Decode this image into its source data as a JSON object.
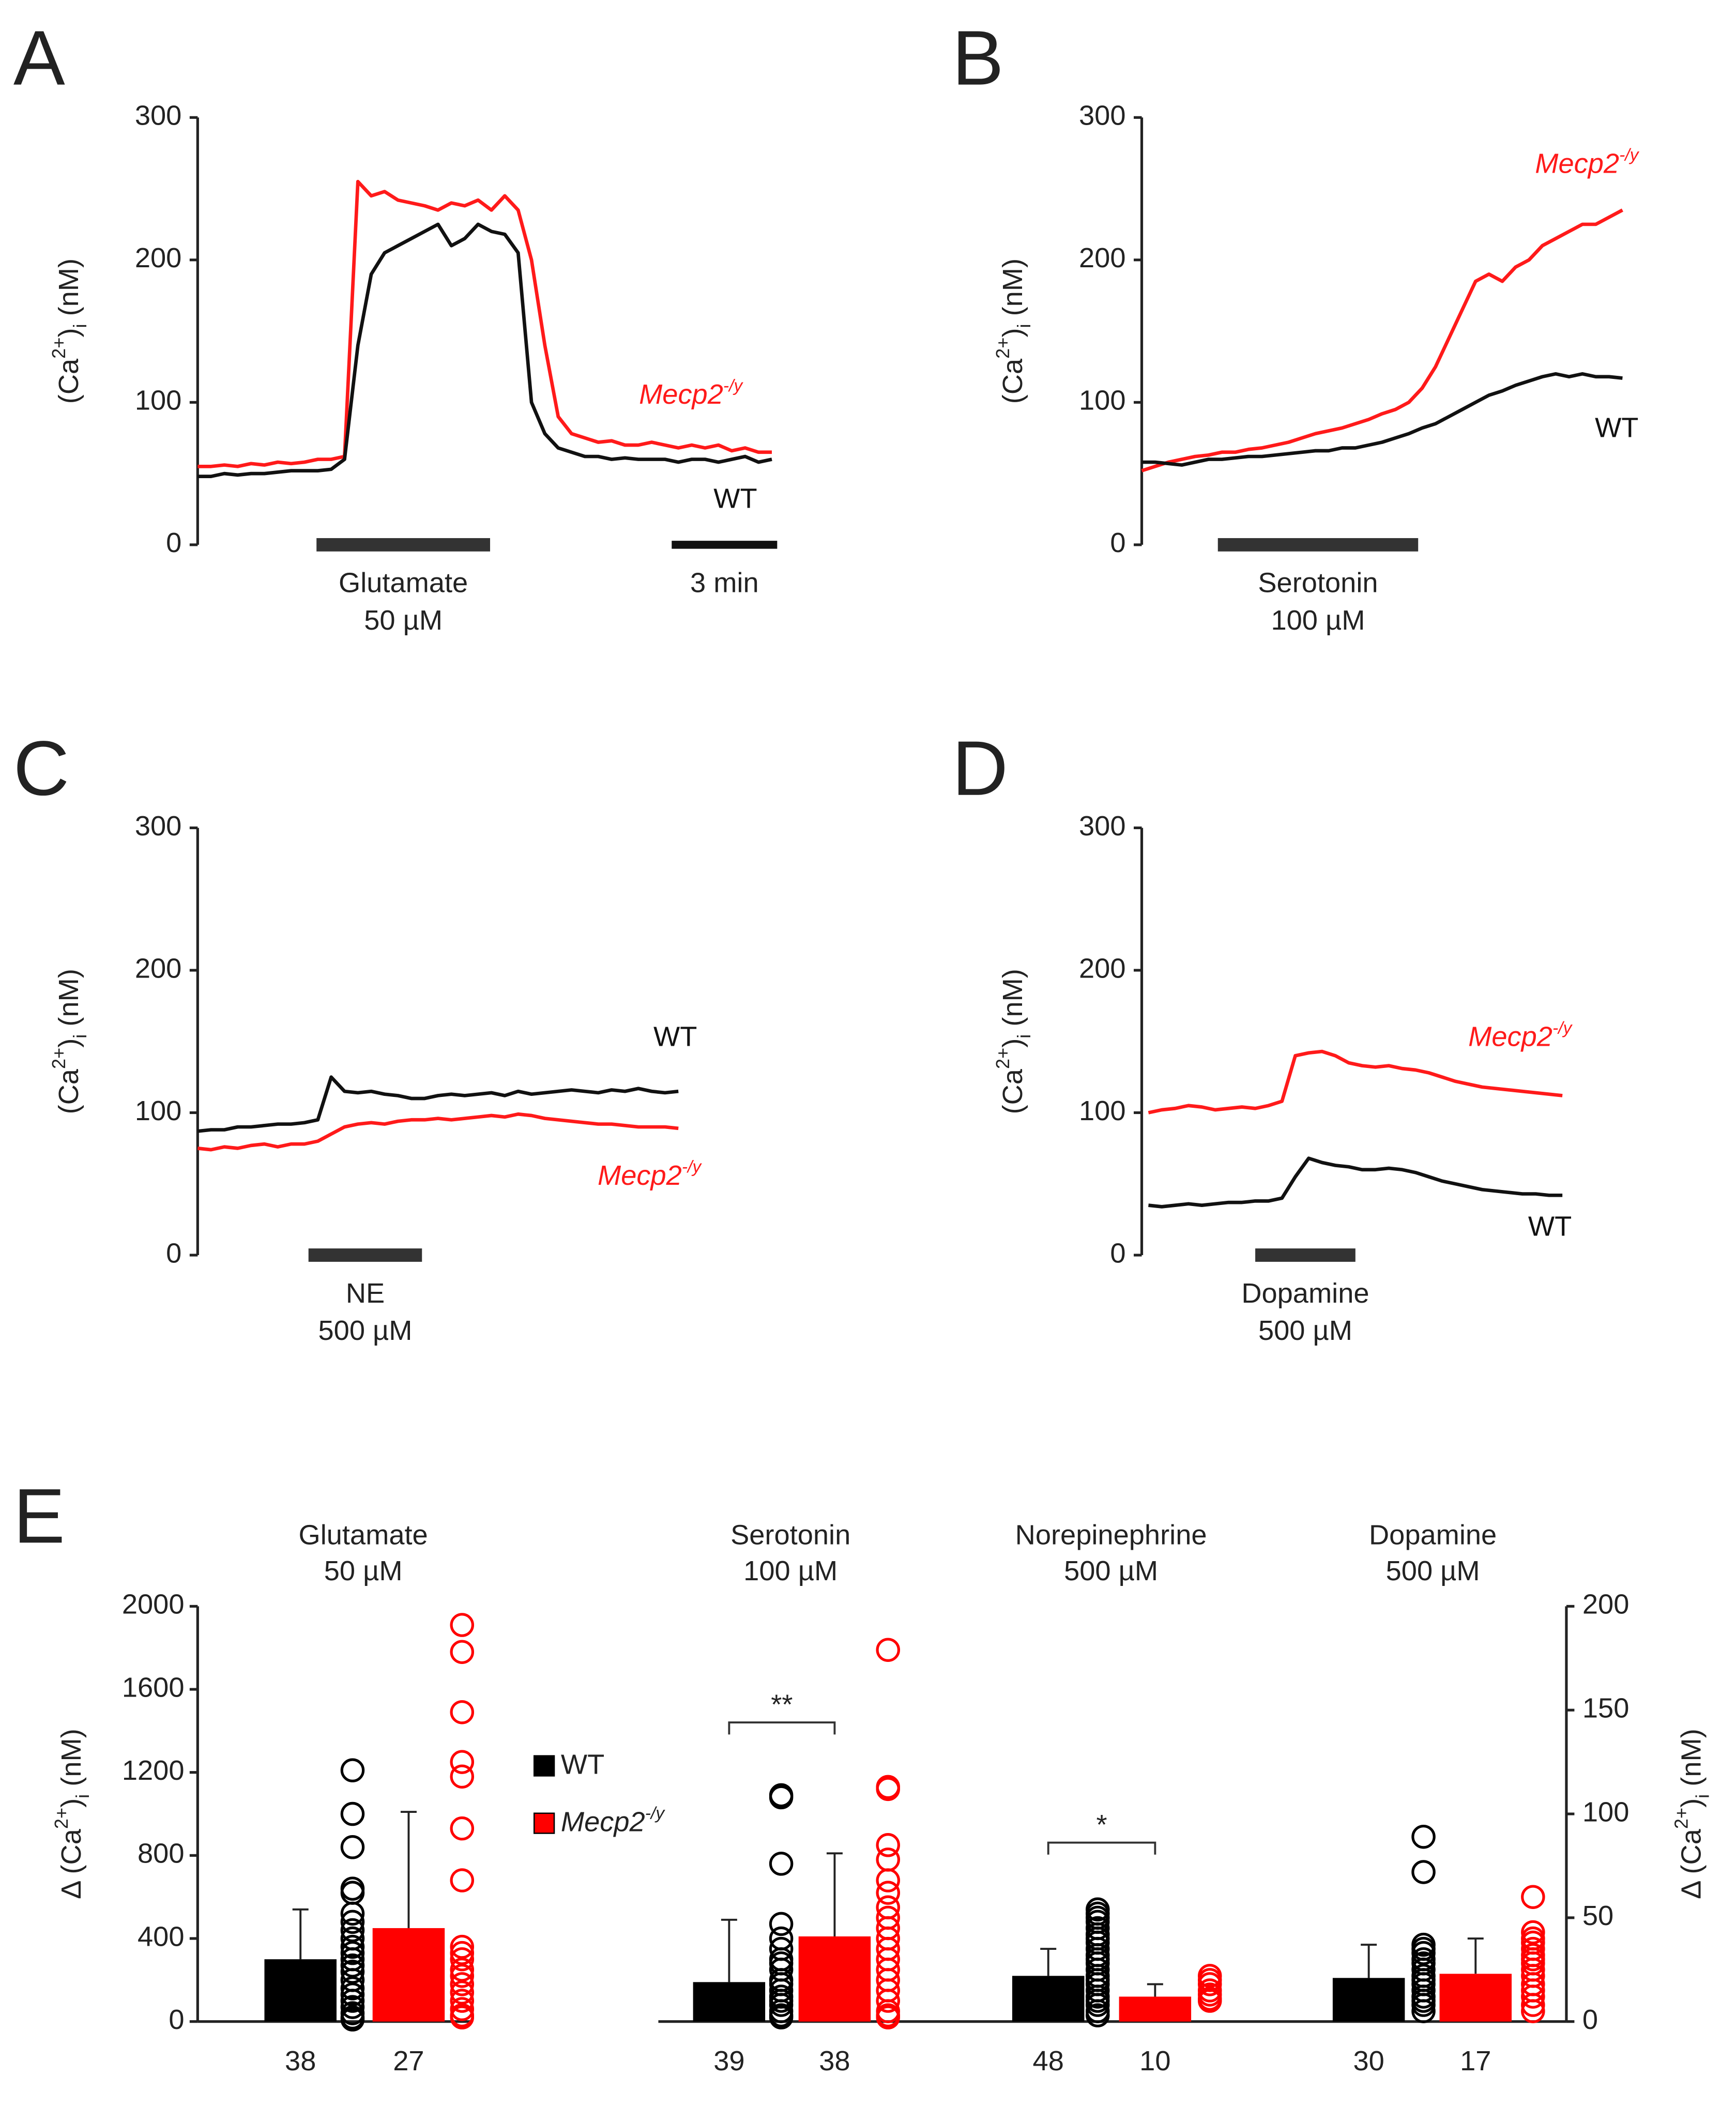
{
  "chart_data": [
    {
      "type": "line",
      "panel": "A",
      "ylabel": [
        "(Ca",
        "2+",
        ")",
        "i",
        " (nM)"
      ],
      "ylim": [
        0,
        300
      ],
      "yticks": [
        0,
        100,
        200,
        300
      ],
      "stimulus": [
        "Glutamate",
        "50 µM"
      ],
      "scale_bar": "3 min",
      "series": [
        {
          "name": "Mecp2",
          "name_sup": "-/y",
          "color": "#ff1a1a",
          "values": [
            55,
            55,
            56,
            55,
            57,
            56,
            58,
            57,
            58,
            60,
            60,
            62,
            255,
            245,
            248,
            242,
            240,
            238,
            235,
            240,
            238,
            242,
            235,
            245,
            235,
            200,
            140,
            90,
            78,
            75,
            72,
            73,
            70,
            70,
            72,
            70,
            68,
            70,
            68,
            70,
            66,
            68,
            65,
            65
          ]
        },
        {
          "name": "WT",
          "color": "#111111",
          "values": [
            48,
            48,
            50,
            49,
            50,
            50,
            51,
            52,
            52,
            52,
            53,
            60,
            140,
            190,
            205,
            210,
            215,
            220,
            225,
            210,
            215,
            225,
            220,
            218,
            205,
            100,
            78,
            68,
            65,
            62,
            62,
            60,
            61,
            60,
            60,
            60,
            58,
            60,
            60,
            58,
            60,
            62,
            58,
            60
          ]
        }
      ]
    },
    {
      "type": "line",
      "panel": "B",
      "ylabel": [
        "(Ca",
        "2+",
        ")",
        "i",
        " (nM)"
      ],
      "ylim": [
        0,
        300
      ],
      "yticks": [
        0,
        100,
        200,
        300
      ],
      "stimulus": [
        "Serotonin",
        "100 µM"
      ],
      "series": [
        {
          "name": "Mecp2",
          "name_sup": "-/y",
          "color": "#ff1a1a",
          "values": [
            52,
            55,
            58,
            60,
            62,
            63,
            65,
            65,
            67,
            68,
            70,
            72,
            75,
            78,
            80,
            82,
            85,
            88,
            92,
            95,
            100,
            110,
            125,
            145,
            165,
            185,
            190,
            185,
            195,
            200,
            210,
            215,
            220,
            225,
            225,
            230,
            235
          ]
        },
        {
          "name": "WT",
          "color": "#111111",
          "values": [
            58,
            58,
            57,
            56,
            58,
            60,
            60,
            61,
            62,
            62,
            63,
            64,
            65,
            66,
            66,
            68,
            68,
            70,
            72,
            75,
            78,
            82,
            85,
            90,
            95,
            100,
            105,
            108,
            112,
            115,
            118,
            120,
            118,
            120,
            118,
            118,
            117
          ]
        }
      ]
    },
    {
      "type": "line",
      "panel": "C",
      "ylabel": [
        "(Ca",
        "2+",
        ")",
        "i",
        " (nM)"
      ],
      "ylim": [
        0,
        300
      ],
      "yticks": [
        0,
        100,
        200,
        300
      ],
      "stimulus": [
        "NE",
        "500 µM"
      ],
      "series": [
        {
          "name": "WT",
          "color": "#111111",
          "values": [
            87,
            88,
            88,
            90,
            90,
            91,
            92,
            92,
            93,
            95,
            125,
            115,
            114,
            115,
            113,
            112,
            110,
            110,
            112,
            113,
            112,
            113,
            114,
            112,
            115,
            113,
            114,
            115,
            116,
            115,
            114,
            116,
            115,
            117,
            115,
            114,
            115
          ]
        },
        {
          "name": "Mecp2",
          "name_sup": "-/y",
          "color": "#ff1a1a",
          "values": [
            75,
            74,
            76,
            75,
            77,
            78,
            76,
            78,
            78,
            80,
            85,
            90,
            92,
            93,
            92,
            94,
            95,
            95,
            96,
            95,
            96,
            97,
            98,
            97,
            99,
            98,
            96,
            95,
            94,
            93,
            92,
            92,
            91,
            90,
            90,
            90,
            89
          ]
        }
      ]
    },
    {
      "type": "line",
      "panel": "D",
      "ylabel": [
        "(Ca",
        "2+",
        ")",
        "i",
        " (nM)"
      ],
      "ylim": [
        0,
        300
      ],
      "yticks": [
        0,
        100,
        200,
        300
      ],
      "stimulus": [
        "Dopamine",
        "500 µM"
      ],
      "series": [
        {
          "name": "Mecp2",
          "name_sup": "-/y",
          "color": "#ff1a1a",
          "values": [
            100,
            102,
            103,
            105,
            104,
            102,
            103,
            104,
            103,
            105,
            108,
            140,
            142,
            143,
            140,
            135,
            133,
            132,
            133,
            131,
            130,
            128,
            125,
            122,
            120,
            118,
            117,
            116,
            115,
            114,
            113,
            112
          ]
        },
        {
          "name": "WT",
          "color": "#111111",
          "values": [
            35,
            34,
            35,
            36,
            35,
            36,
            37,
            37,
            38,
            38,
            40,
            55,
            68,
            65,
            63,
            62,
            60,
            60,
            61,
            60,
            58,
            55,
            52,
            50,
            48,
            46,
            45,
            44,
            43,
            43,
            42,
            42
          ]
        }
      ]
    },
    {
      "type": "bar",
      "panel": "E",
      "ylabel": [
        "Δ (Ca",
        "2+",
        ")",
        "i",
        " (nM)"
      ],
      "y2label": [
        "Δ (Ca",
        "2+",
        ")",
        "i",
        " (nM)"
      ],
      "ylim": [
        0,
        2000
      ],
      "yticks": [
        0,
        400,
        800,
        1200,
        1600,
        2000
      ],
      "y2lim": [
        0,
        200
      ],
      "y2ticks": [
        0,
        50,
        100,
        150,
        200
      ],
      "categories": [
        [
          "Glutamate",
          "50 µM"
        ],
        [
          "Serotonin",
          "100 µM"
        ],
        [
          "Norepinephrine",
          "500 µM"
        ],
        [
          "Dopamine",
          "500 µM"
        ]
      ],
      "category_axis": [
        "y",
        "y2",
        "y2",
        "y2"
      ],
      "annotations": [
        {
          "text": "**",
          "category": 1
        },
        {
          "text": "*",
          "category": 2
        }
      ],
      "series": [
        {
          "name": "WT",
          "color": "#000000",
          "values": [
            300,
            19,
            22,
            21
          ],
          "errors": [
            240,
            30,
            13,
            16
          ],
          "n": [
            38,
            39,
            48,
            30
          ],
          "points": [
            [
              1210,
              1000,
              840,
              640,
              620,
              520,
              480,
              440,
              400,
              360,
              330,
              300,
              270,
              240,
              200,
              160,
              130,
              100,
              70,
              40,
              20,
              10
            ],
            [
              109,
              108,
              76,
              47,
              40,
              35,
              30,
              28,
              25,
              20,
              18,
              15,
              12,
              10,
              8,
              5,
              3,
              2
            ],
            [
              54,
              52,
              50,
              48,
              45,
              42,
              40,
              38,
              35,
              32,
              30,
              28,
              25,
              22,
              20,
              18,
              15,
              12,
              10,
              8,
              5,
              3
            ],
            [
              89,
              72,
              37,
              35,
              33,
              30,
              28,
              25,
              22,
              20,
              18,
              15,
              12,
              10,
              8,
              5
            ]
          ]
        },
        {
          "name": "Mecp2",
          "name_sup": "-/y",
          "color": "#ff0000",
          "values": [
            450,
            41,
            12,
            23
          ],
          "errors": [
            560,
            40,
            6,
            17
          ],
          "n": [
            27,
            38,
            10,
            17
          ],
          "points": [
            [
              1910,
              1780,
              1490,
              1250,
              1180,
              930,
              680,
              360,
              330,
              300,
              250,
              220,
              180,
              140,
              100,
              60,
              30,
              20
            ],
            [
              179,
              113,
              112,
              85,
              78,
              68,
              62,
              55,
              50,
              45,
              40,
              35,
              30,
              25,
              20,
              15,
              10,
              5,
              3,
              2
            ],
            [
              22,
              20,
              18,
              15,
              13,
              11,
              10
            ],
            [
              60,
              43,
              40,
              38,
              35,
              32,
              30,
              28,
              25,
              22,
              18,
              15,
              12,
              8,
              5
            ]
          ]
        }
      ]
    }
  ]
}
